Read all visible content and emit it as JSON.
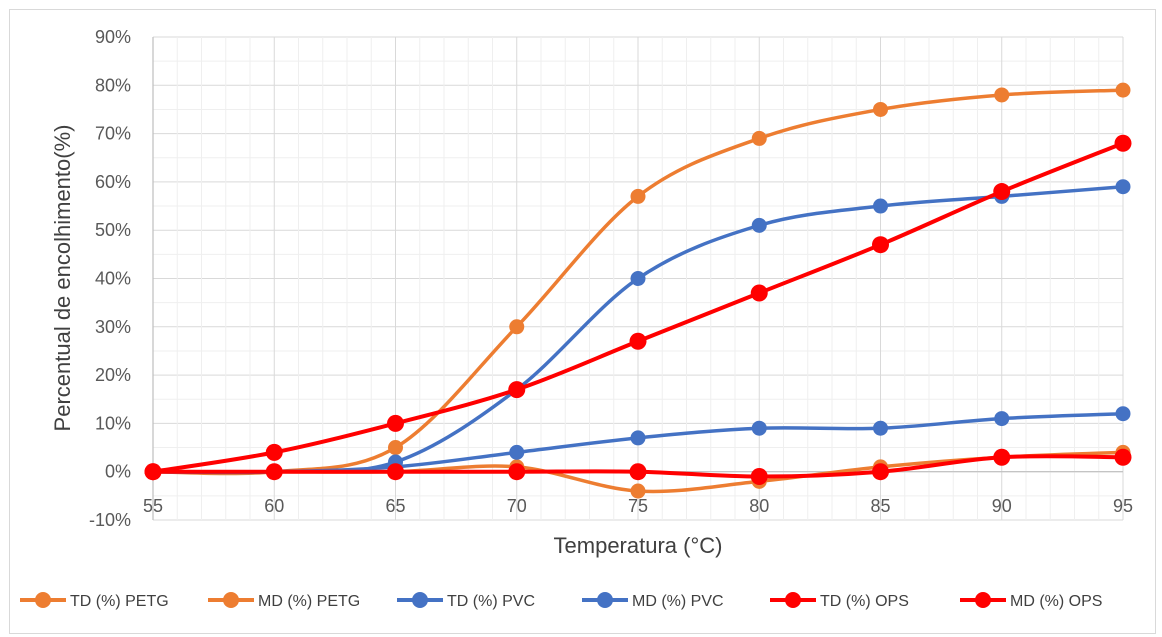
{
  "chart_data": {
    "type": "line",
    "xlabel": "Temperatura (°C)",
    "ylabel": "Percentual de encolhimento(%)",
    "x": [
      55,
      60,
      65,
      70,
      75,
      80,
      85,
      90,
      95
    ],
    "x_tick_labels": [
      "55",
      "60",
      "65",
      "70",
      "75",
      "80",
      "85",
      "90",
      "95"
    ],
    "ylim": [
      -10,
      90
    ],
    "y_tick_labels": [
      "-10%",
      "0%",
      "10%",
      "20%",
      "30%",
      "40%",
      "50%",
      "60%",
      "70%",
      "80%",
      "90%"
    ],
    "y_ticks": [
      -10,
      0,
      10,
      20,
      30,
      40,
      50,
      60,
      70,
      80,
      90
    ],
    "grid": true,
    "smoothed": true,
    "legend_position": "bottom",
    "series": [
      {
        "name": "TD (%) PETG",
        "color": "#ED7D31",
        "values": [
          0,
          0,
          5,
          30,
          57,
          69,
          75,
          78,
          79
        ]
      },
      {
        "name": "MD (%) PETG",
        "color": "#ED7D31",
        "values": [
          0,
          0,
          0,
          1,
          -4,
          -2,
          1,
          3,
          4
        ]
      },
      {
        "name": "TD (%) PVC",
        "color": "#4472C4",
        "values": [
          0,
          0,
          2,
          17,
          40,
          51,
          55,
          57,
          59
        ]
      },
      {
        "name": "MD (%) PVC",
        "color": "#4472C4",
        "values": [
          0,
          0,
          1,
          4,
          7,
          9,
          9,
          11,
          12
        ]
      },
      {
        "name": "TD (%) OPS",
        "color": "#FF0000",
        "values": [
          0,
          4,
          10,
          17,
          27,
          37,
          47,
          58,
          68
        ]
      },
      {
        "name": "MD (%) OPS",
        "color": "#FF0000",
        "values": [
          0,
          0,
          0,
          0,
          0,
          -1,
          0,
          3,
          3
        ]
      }
    ]
  }
}
